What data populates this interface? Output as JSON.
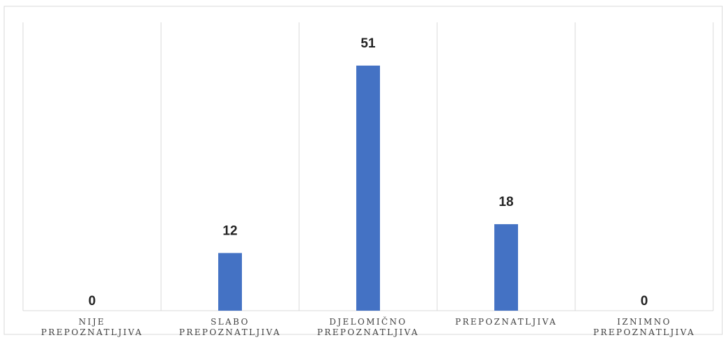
{
  "chart_data": {
    "type": "bar",
    "categories": [
      [
        "NIJE",
        "PREPOZNATLJIVA"
      ],
      [
        "SLABO",
        "PREPOZNATLJIVA"
      ],
      [
        "DJELOMIČNO",
        "PREPOZNATLJIVA"
      ],
      [
        "PREPOZNATLJIVA"
      ],
      [
        "IZNIMNO",
        "PREPOZNATLJIVA"
      ]
    ],
    "values": [
      0,
      12,
      51,
      18,
      0
    ],
    "ylim": [
      0,
      60
    ],
    "data_labels": [
      "0",
      "12",
      "51",
      "18",
      "0"
    ],
    "grid": "vertical separators between categories",
    "colors": {
      "bar": "#4472c4",
      "grid": "#d9d9d9",
      "border": "#d9d9d9",
      "text": "#222222",
      "axis_text": "#404040"
    }
  }
}
